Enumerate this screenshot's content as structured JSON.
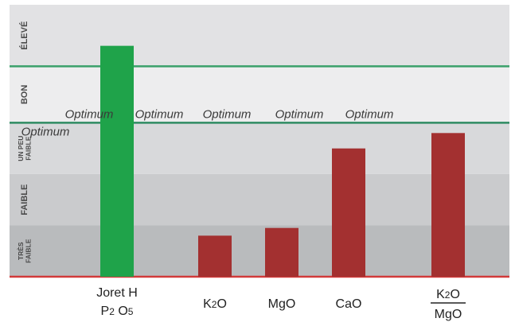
{
  "chart_data": {
    "type": "bar",
    "title": "",
    "xlabel": "",
    "ylabel": "",
    "categories": [
      {
        "line1": "Joret H",
        "line2": "P2 O5",
        "fraction": false
      },
      {
        "line1": "K2O",
        "line2": "",
        "fraction": false
      },
      {
        "line1": "MgO",
        "line2": "",
        "fraction": false
      },
      {
        "line1": "CaO",
        "line2": "",
        "fraction": false
      },
      {
        "line1": "K2O",
        "line2": "MgO",
        "fraction": true
      }
    ],
    "values": [
      4.5,
      0.8,
      0.95,
      2.5,
      2.8
    ],
    "bar_colors": [
      "#1fa34a",
      "#a33030",
      "#a33030",
      "#a33030",
      "#a33030"
    ],
    "ylim": [
      0,
      5.3
    ],
    "levels": [
      {
        "label": "TRÈS FAIBLE",
        "from": 0,
        "to": 1,
        "color": "#b9bbbd"
      },
      {
        "label": "FAIBLE",
        "from": 1,
        "to": 2,
        "color": "#cacbcd"
      },
      {
        "label": "UN PEU FAIBLE",
        "from": 2,
        "to": 3,
        "color": "#d8d9db"
      },
      {
        "label": "BON",
        "from": 3,
        "to": 4.1,
        "color": "#ededee"
      },
      {
        "label": "ÉLEVÉ",
        "from": 4.1,
        "to": 5.3,
        "color": "#e2e2e4"
      }
    ],
    "optimum_line": {
      "value": 3,
      "color": "#2e8b62"
    },
    "upper_line": {
      "value": 4.1,
      "color": "#3aa06a"
    },
    "baseline_color": "#d23a3a",
    "optimum_labels": [
      "Optimum",
      "Optimum",
      "Optimum",
      "Optimum",
      "Optimum",
      "Optimum"
    ]
  }
}
